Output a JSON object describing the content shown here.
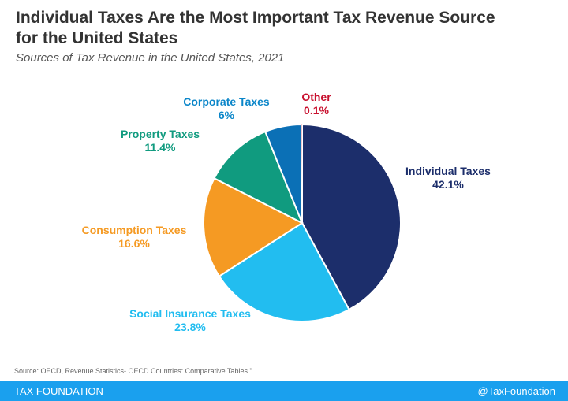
{
  "chart_data": {
    "type": "pie",
    "title": "Individual Taxes Are the Most Important Tax Revenue Source for the United States",
    "subtitle": "Sources of Tax Revenue in the United States, 2021",
    "slices": [
      {
        "name": "Individual Taxes",
        "value": 42.1,
        "label": "42.1%",
        "color": "#1c2e6b"
      },
      {
        "name": "Social Insurance Taxes",
        "value": 23.8,
        "label": "23.8%",
        "color": "#22bdf0"
      },
      {
        "name": "Consumption Taxes",
        "value": 16.6,
        "label": "16.6%",
        "color": "#f59a23"
      },
      {
        "name": "Property Taxes",
        "value": 11.4,
        "label": "11.4%",
        "color": "#109b7f"
      },
      {
        "name": "Corporate Taxes",
        "value": 6,
        "label": "6%",
        "color": "#0b70b6"
      },
      {
        "name": "Other",
        "value": 0.1,
        "label": "0.1%",
        "color": "#c8102e"
      }
    ],
    "start": "top",
    "direction": "clockwise"
  },
  "source": "Source: OECD, Revenue Statistics- OECD Countries: Comparative Tables.\"",
  "footer": {
    "brand": "TAX FOUNDATION",
    "handle": "@TaxFoundation",
    "color": "#1aa0ee"
  }
}
